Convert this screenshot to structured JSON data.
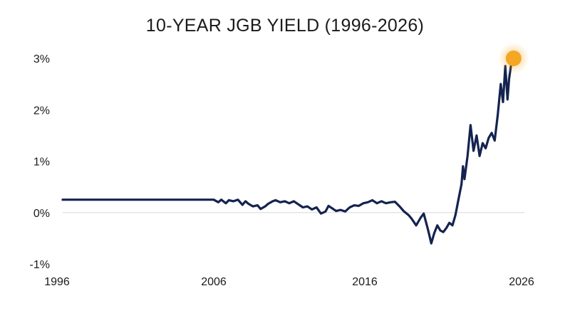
{
  "chart_data": {
    "type": "line",
    "title": "10-YEAR JGB YIELD (1996-2026)",
    "xlabel": "",
    "ylabel": "",
    "xlim": [
      1996,
      2026
    ],
    "ylim": [
      -1,
      3
    ],
    "x_ticks": [
      1996,
      2006,
      2016,
      2026
    ],
    "x_tick_labels": [
      "1996",
      "2006",
      "2016",
      "2026"
    ],
    "y_ticks": [
      -1,
      0,
      1,
      2,
      3
    ],
    "y_tick_labels": [
      "-1%",
      "0%",
      "1%",
      "2%",
      "3%"
    ],
    "grid": false,
    "zero_line": true,
    "legend": "none",
    "line_color": "#14234f",
    "zero_line_color": "#e3e3e8",
    "highlight_color": "#f5a623",
    "highlight_point": {
      "x": 2025.85,
      "y": 3.0
    },
    "series": [
      {
        "x": [
          1996.0,
          2000.0,
          2006.0,
          2006.3,
          2006.5,
          2006.8,
          2007.0,
          2007.3,
          2007.6,
          2007.9,
          2008.1,
          2008.3,
          2008.6,
          2008.9,
          2009.1,
          2009.4,
          2009.6,
          2009.9,
          2010.1,
          2010.4,
          2010.7,
          2011.0,
          2011.3,
          2011.6,
          2011.9,
          2012.2,
          2012.5,
          2012.8,
          2013.1,
          2013.4,
          2013.6,
          2013.9,
          2014.1,
          2014.4,
          2014.7,
          2015.0,
          2015.3,
          2015.6,
          2015.9,
          2016.2,
          2016.5,
          2016.8,
          2017.1,
          2017.4,
          2017.7,
          2018.0,
          2018.3,
          2018.6,
          2018.9,
          2019.1,
          2019.4,
          2019.7,
          2019.9,
          2020.2,
          2020.4,
          2020.6,
          2020.8,
          2021.0,
          2021.2,
          2021.4,
          2021.6,
          2021.8,
          2022.0,
          2022.2,
          2022.4,
          2022.5,
          2022.6,
          2022.8,
          2023.0,
          2023.2,
          2023.4,
          2023.6,
          2023.8,
          2024.0,
          2024.2,
          2024.4,
          2024.6,
          2024.8,
          2025.0,
          2025.15,
          2025.3,
          2025.45,
          2025.55,
          2025.7,
          2025.8
        ],
        "y": [
          0.25,
          0.25,
          0.25,
          0.2,
          0.25,
          0.18,
          0.24,
          0.22,
          0.25,
          0.15,
          0.22,
          0.17,
          0.12,
          0.14,
          0.07,
          0.12,
          0.17,
          0.22,
          0.24,
          0.2,
          0.22,
          0.18,
          0.22,
          0.16,
          0.1,
          0.12,
          0.06,
          0.1,
          -0.02,
          0.02,
          0.13,
          0.07,
          0.03,
          0.05,
          0.02,
          0.1,
          0.14,
          0.13,
          0.18,
          0.2,
          0.24,
          0.18,
          0.22,
          0.18,
          0.2,
          0.21,
          0.12,
          0.02,
          -0.05,
          -0.12,
          -0.25,
          -0.1,
          -0.02,
          -0.35,
          -0.6,
          -0.4,
          -0.25,
          -0.35,
          -0.38,
          -0.3,
          -0.2,
          -0.25,
          -0.05,
          0.25,
          0.55,
          0.9,
          0.65,
          1.1,
          1.7,
          1.2,
          1.5,
          1.1,
          1.35,
          1.25,
          1.45,
          1.55,
          1.4,
          1.9,
          2.5,
          2.15,
          2.85,
          2.2,
          2.6,
          2.9,
          3.0
        ]
      }
    ]
  }
}
